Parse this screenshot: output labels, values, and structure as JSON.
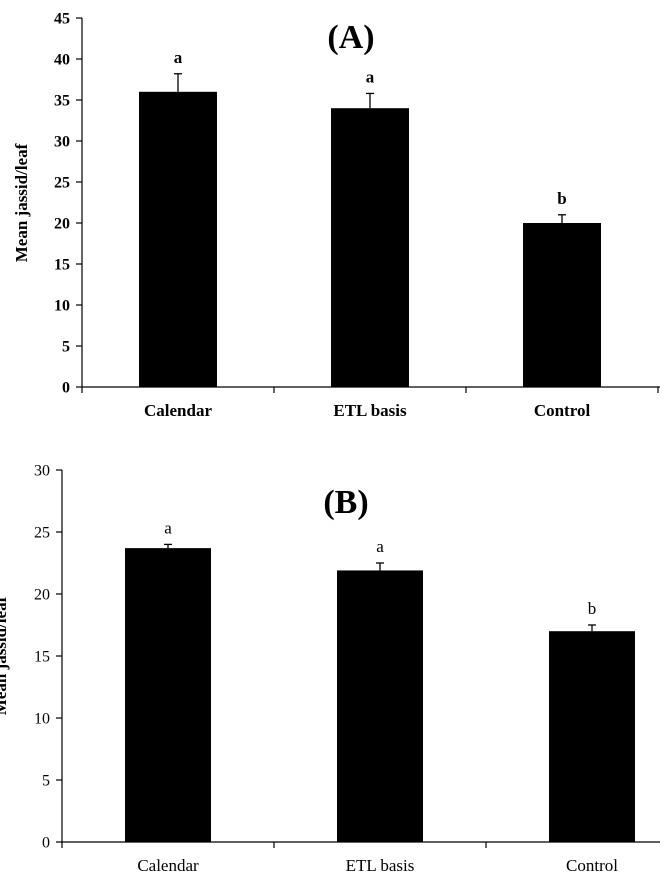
{
  "chart_data": [
    {
      "type": "bar",
      "title": "(A)",
      "categories": [
        "Calendar",
        "ETL basis",
        "Control"
      ],
      "values": [
        36,
        34,
        20
      ],
      "error": [
        2.2,
        1.8,
        1.0
      ],
      "annotations": [
        "a",
        "a",
        "b"
      ],
      "xlabel": "",
      "ylabel": "Mean jassid/leaf",
      "ylim": [
        0,
        45
      ],
      "yticks": [
        "0",
        "5",
        "10",
        "15",
        "20",
        "25",
        "30",
        "35",
        "40",
        "45"
      ],
      "grid": false,
      "bar_color": "#000000"
    },
    {
      "type": "bar",
      "title": "(B)",
      "categories": [
        "Calendar",
        "ETL basis",
        "Control"
      ],
      "values": [
        23.7,
        21.9,
        17.0
      ],
      "error": [
        0.3,
        0.6,
        0.5
      ],
      "annotations": [
        "a",
        "a",
        "b"
      ],
      "xlabel": "",
      "ylabel": "Mean jassid/leaf",
      "ylim": [
        0,
        30
      ],
      "yticks": [
        "0",
        "5",
        "10",
        "15",
        "20",
        "25",
        "30"
      ],
      "grid": false,
      "bar_color": "#000000"
    }
  ]
}
